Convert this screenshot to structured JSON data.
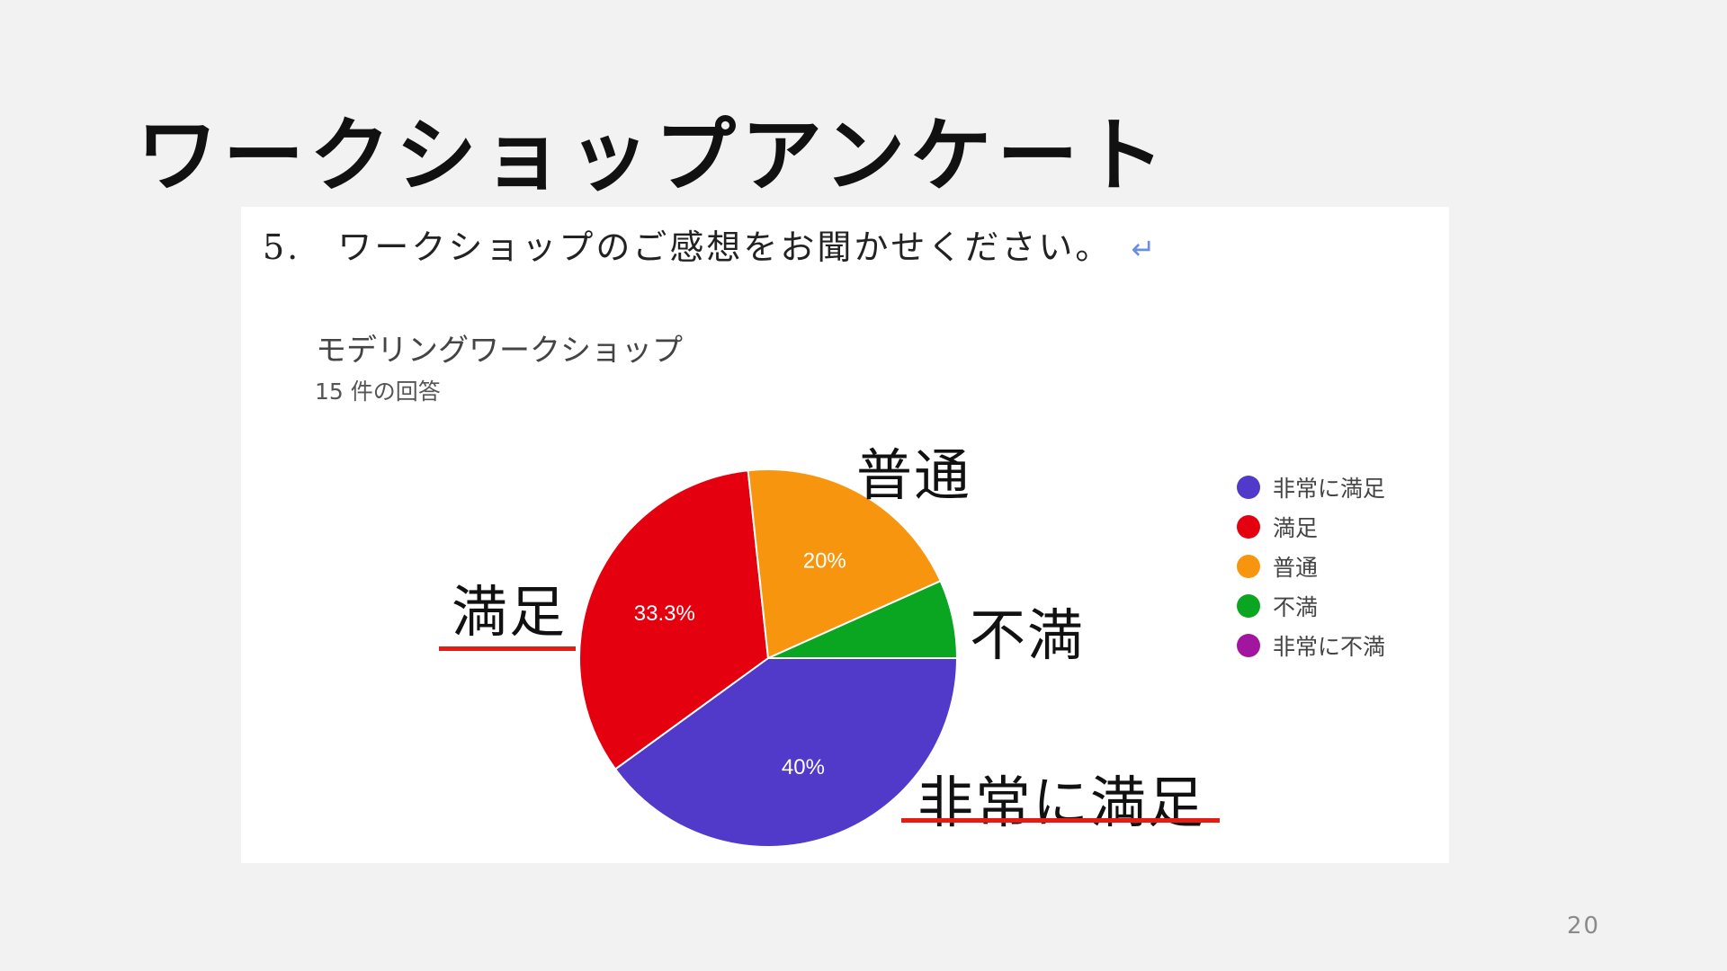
{
  "slide": {
    "title": "ワークショップアンケート",
    "page_number": "20"
  },
  "question": {
    "number": "5.",
    "text": "ワークショップのご感想をお聞かせください。",
    "return_glyph": "↵"
  },
  "chart_data": {
    "type": "pie",
    "title": "モデリングワークショップ",
    "subtitle": "15 件の回答",
    "categories": [
      "非常に満足",
      "満足",
      "普通",
      "不満",
      "非常に不満"
    ],
    "values": [
      40,
      33.3,
      20,
      6.7,
      0
    ],
    "data_labels": [
      "40%",
      "33.3%",
      "20%",
      "",
      ""
    ],
    "colors": [
      "#5139c9",
      "#e5000f",
      "#f7960e",
      "#0aa521",
      "#a2169f"
    ],
    "legend_position": "right"
  },
  "annotations": {
    "futsuu": "普通",
    "manzoku": "満足",
    "fuman": "不満",
    "hijou_ni_manzoku": "非常に満足",
    "underline_color": "#e31c14"
  }
}
